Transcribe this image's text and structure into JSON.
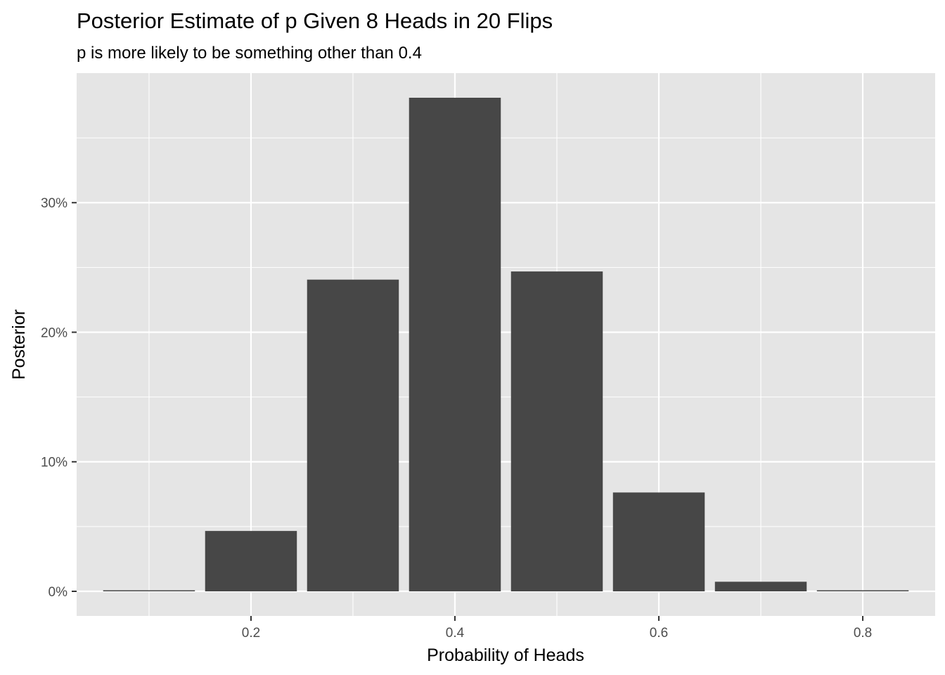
{
  "chart_data": {
    "type": "bar",
    "title": "Posterior Estimate of p Given 8 Heads in 20 Flips",
    "subtitle": "p is more likely to be something other than 0.4",
    "xlabel": "Probability of Heads",
    "ylabel": "Posterior",
    "x": [
      0.1,
      0.2,
      0.3,
      0.4,
      0.5,
      0.6,
      0.7,
      0.8
    ],
    "values": [
      0.0007,
      0.0466,
      0.2406,
      0.381,
      0.2469,
      0.0763,
      0.0074,
      0.0002
    ],
    "xlim": [
      0.029,
      0.871
    ],
    "ylim": [
      -0.019,
      0.4
    ],
    "x_ticks": [
      0.2,
      0.4,
      0.6,
      0.8
    ],
    "x_tick_labels": [
      "0.2",
      "0.4",
      "0.6",
      "0.8"
    ],
    "y_ticks": [
      0,
      0.1,
      0.2,
      0.3
    ],
    "y_tick_labels": [
      "0%",
      "10%",
      "20%",
      "30%"
    ],
    "bar_width": 0.09,
    "grid": true,
    "colors": {
      "panel_background": "#e5e5e5",
      "grid": "#ffffff",
      "bar": "#474747",
      "tick_text": "#4d4d4d",
      "tick_mark": "#333333"
    }
  }
}
